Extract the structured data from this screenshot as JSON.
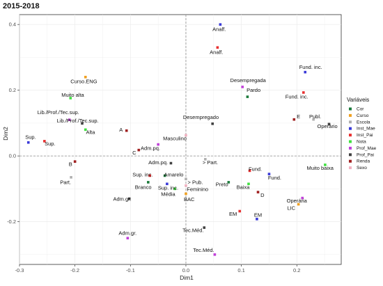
{
  "chart_data": {
    "type": "scatter",
    "title": "2015-2018",
    "xlabel": "Dim1",
    "ylabel": "Dim2",
    "xlim": [
      -0.3,
      0.28
    ],
    "ylim": [
      -0.33,
      0.43
    ],
    "xticks": [
      "-0.3",
      "-0.2",
      "-0.1",
      "0.0",
      "0.1",
      "0.2"
    ],
    "yticks": [
      "-0.2",
      "0.0",
      "0.2",
      "0.4"
    ],
    "xtick_values": [
      -0.3,
      -0.2,
      -0.1,
      0.0,
      0.1,
      0.2
    ],
    "ytick_values": [
      -0.2,
      0.0,
      0.2,
      0.4
    ],
    "grid": true,
    "reference_lines": [
      0,
      0
    ],
    "legend_placement": "right",
    "legend": {
      "title": "Variáveis",
      "items": [
        {
          "name": "Cor",
          "color": "#1b7a3b"
        },
        {
          "name": "Curso",
          "color": "#f0a020"
        },
        {
          "name": "Escola",
          "color": "#b0b0b0"
        },
        {
          "name": "Inst_Mae",
          "color": "#3a3ad8"
        },
        {
          "name": "Inst_Pai",
          "color": "#e83030"
        },
        {
          "name": "Nota",
          "color": "#40e040"
        },
        {
          "name": "Prof_Mae",
          "color": "#c040d8"
        },
        {
          "name": "Prof_Pai",
          "color": "#404040"
        },
        {
          "name": "Renda",
          "color": "#a02020"
        },
        {
          "name": "Sexo",
          "color": "#f0b0c0"
        }
      ]
    },
    "points": [
      {
        "label": "Analf.",
        "group": "Inst_Mae",
        "x": 0.062,
        "y": 0.4,
        "lx": 0.06,
        "ly": 0.38
      },
      {
        "label": "Analf.",
        "group": "Inst_Pai",
        "x": 0.057,
        "y": 0.33,
        "lx": 0.055,
        "ly": 0.31
      },
      {
        "label": "Fund. inc.",
        "group": "Inst_Mae",
        "x": 0.215,
        "y": 0.255,
        "lx": 0.225,
        "ly": 0.265
      },
      {
        "label": "Fund. inc.",
        "group": "Inst_Pai",
        "x": 0.212,
        "y": 0.193,
        "lx": 0.2,
        "ly": 0.175
      },
      {
        "label": "Desempregada",
        "group": "Prof_Mae",
        "x": 0.102,
        "y": 0.21,
        "lx": 0.112,
        "ly": 0.225
      },
      {
        "label": "Pardo",
        "group": "Cor",
        "x": 0.111,
        "y": 0.18,
        "lx": 0.122,
        "ly": 0.195
      },
      {
        "label": "Curso.ENG",
        "group": "Curso",
        "x": -0.181,
        "y": 0.24,
        "lx": -0.184,
        "ly": 0.222
      },
      {
        "label": "Muito alta",
        "group": "Nota",
        "x": -0.208,
        "y": 0.176,
        "lx": -0.204,
        "ly": 0.18
      },
      {
        "label": "E",
        "group": "Renda",
        "x": 0.195,
        "y": 0.111,
        "lx": 0.203,
        "ly": 0.115
      },
      {
        "label": "Publ.",
        "group": "Escola",
        "x": 0.23,
        "y": 0.111,
        "lx": 0.233,
        "ly": 0.115
      },
      {
        "label": "Operário",
        "group": "Prof_Pai",
        "x": 0.258,
        "y": 0.097,
        "lx": 0.255,
        "ly": 0.085
      },
      {
        "label": "Desempregado",
        "group": "Prof_Pai",
        "x": 0.048,
        "y": 0.098,
        "lx": 0.027,
        "ly": 0.112
      },
      {
        "label": "Lib./Prof./Tec.sup.",
        "group": "Prof_Pai",
        "x": -0.187,
        "y": 0.099,
        "lx": -0.23,
        "ly": 0.127
      },
      {
        "label": "Lib./Prof./Tec.sup.",
        "group": "Prof_Mae",
        "x": -0.21,
        "y": 0.11,
        "lx": -0.195,
        "ly": 0.102
      },
      {
        "label": "Alta",
        "group": "Nota",
        "x": -0.181,
        "y": 0.08,
        "lx": -0.172,
        "ly": 0.067
      },
      {
        "label": "A",
        "group": "Renda",
        "x": -0.107,
        "y": 0.077,
        "lx": -0.117,
        "ly": 0.074
      },
      {
        "label": "Sup.",
        "group": "Inst_Mae",
        "x": -0.284,
        "y": 0.041,
        "lx": -0.28,
        "ly": 0.052
      },
      {
        "label": "Sup.",
        "group": "Inst_Pai",
        "x": -0.255,
        "y": 0.045,
        "lx": -0.245,
        "ly": 0.032
      },
      {
        "label": "Masculino",
        "group": "Sexo",
        "x": 0.0,
        "y": 0.063,
        "lx": -0.02,
        "ly": 0.048
      },
      {
        "label": "Adm.pq.",
        "group": "Prof_Mae",
        "x": -0.05,
        "y": 0.035,
        "lx": -0.064,
        "ly": 0.018
      },
      {
        "label": "C",
        "group": "Renda",
        "x": -0.085,
        "y": 0.018,
        "lx": -0.093,
        "ly": 0.005
      },
      {
        "label": "B",
        "group": "Renda",
        "x": -0.2,
        "y": -0.017,
        "lx": -0.208,
        "ly": -0.03
      },
      {
        "label": "Adm.pq.",
        "group": "Prof_Pai",
        "x": -0.027,
        "y": -0.022,
        "lx": -0.05,
        "ly": -0.025
      },
      {
        "label": "> Part.",
        "group": "Escola",
        "x": 0.035,
        "y": -0.01,
        "lx": 0.044,
        "ly": -0.025
      },
      {
        "label": "Sup. inc.",
        "group": "Inst_Pai",
        "x": -0.065,
        "y": -0.06,
        "lx": -0.078,
        "ly": -0.062
      },
      {
        "label": "Amarelo",
        "group": "Cor",
        "x": -0.038,
        "y": -0.06,
        "lx": -0.022,
        "ly": -0.062
      },
      {
        "label": "Part.",
        "group": "Escola",
        "x": -0.207,
        "y": -0.065,
        "lx": -0.217,
        "ly": -0.085
      },
      {
        "label": "> Pub.",
        "group": "Escola",
        "x": 0.0,
        "y": -0.07,
        "lx": 0.017,
        "ly": -0.085
      },
      {
        "label": "Branco",
        "group": "Cor",
        "x": -0.068,
        "y": -0.08,
        "lx": -0.077,
        "ly": -0.1
      },
      {
        "label": "Sup. inc.",
        "group": "Inst_Mae",
        "x": -0.034,
        "y": -0.085,
        "lx": -0.032,
        "ly": -0.102
      },
      {
        "label": "Feminino",
        "group": "Sexo",
        "x": 0.0,
        "y": -0.09,
        "lx": 0.021,
        "ly": -0.107
      },
      {
        "label": "Média",
        "group": "Nota",
        "x": -0.02,
        "y": -0.1,
        "lx": -0.032,
        "ly": -0.122
      },
      {
        "label": "BAC",
        "group": "Curso",
        "x": 0.0,
        "y": -0.115,
        "lx": 0.006,
        "ly": -0.137
      },
      {
        "label": "Preto",
        "group": "Cor",
        "x": 0.077,
        "y": -0.08,
        "lx": 0.065,
        "ly": -0.092
      },
      {
        "label": "Baixa",
        "group": "Nota",
        "x": 0.113,
        "y": -0.085,
        "lx": 0.103,
        "ly": -0.1
      },
      {
        "label": "Fund.",
        "group": "Inst_Pai",
        "x": 0.115,
        "y": -0.045,
        "lx": 0.125,
        "ly": -0.045
      },
      {
        "label": "Fund.",
        "group": "Inst_Mae",
        "x": 0.15,
        "y": -0.055,
        "lx": 0.16,
        "ly": -0.072
      },
      {
        "label": "D",
        "group": "Renda",
        "x": 0.13,
        "y": -0.11,
        "lx": 0.138,
        "ly": -0.125
      },
      {
        "label": "Muito baixa",
        "group": "Nota",
        "x": 0.251,
        "y": -0.027,
        "lx": 0.242,
        "ly": -0.042
      },
      {
        "label": "Operária",
        "group": "Prof_Mae",
        "x": 0.21,
        "y": -0.128,
        "lx": 0.2,
        "ly": -0.142
      },
      {
        "label": "LIC",
        "group": "Curso",
        "x": 0.203,
        "y": -0.147,
        "lx": 0.19,
        "ly": -0.164
      },
      {
        "label": "EM",
        "group": "Inst_Pai",
        "x": 0.097,
        "y": -0.168,
        "lx": 0.085,
        "ly": -0.182
      },
      {
        "label": "EM",
        "group": "Inst_Mae",
        "x": 0.128,
        "y": -0.192,
        "lx": 0.13,
        "ly": -0.185
      },
      {
        "label": "Adm.gr.",
        "group": "Prof_Pai",
        "x": -0.102,
        "y": -0.13,
        "lx": -0.115,
        "ly": -0.136
      },
      {
        "label": "Adm.gr.",
        "group": "Prof_Mae",
        "x": -0.105,
        "y": -0.25,
        "lx": -0.105,
        "ly": -0.24
      },
      {
        "label": "Tec.Méd.",
        "group": "Prof_Pai",
        "x": 0.033,
        "y": -0.218,
        "lx": 0.013,
        "ly": -0.232
      },
      {
        "label": "Tec.Méd.",
        "group": "Prof_Mae",
        "x": 0.052,
        "y": -0.3,
        "lx": 0.032,
        "ly": -0.292
      }
    ]
  }
}
